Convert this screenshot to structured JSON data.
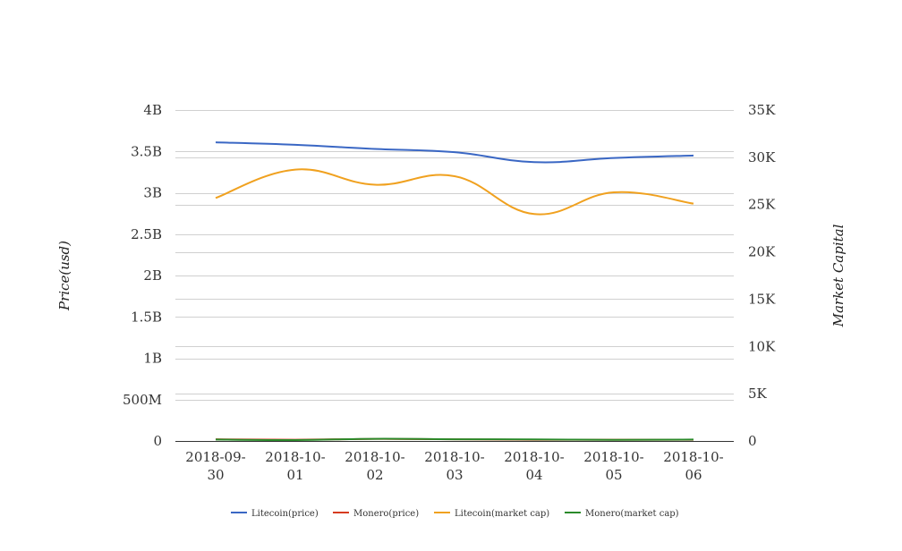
{
  "chart_data": {
    "type": "line",
    "categories": [
      "2018-09-30",
      "2018-10-01",
      "2018-10-02",
      "2018-10-03",
      "2018-10-04",
      "2018-10-05",
      "2018-10-06"
    ],
    "category_labels": [
      [
        "2018-09-",
        "30"
      ],
      [
        "2018-10-",
        "01"
      ],
      [
        "2018-10-",
        "02"
      ],
      [
        "2018-10-",
        "03"
      ],
      [
        "2018-10-",
        "04"
      ],
      [
        "2018-10-",
        "05"
      ],
      [
        "2018-10-",
        "06"
      ]
    ],
    "ylabel": "Price(usd)",
    "y2label": "Market Capital",
    "ylim": [
      0,
      4000000000
    ],
    "y2lim": [
      0,
      35000
    ],
    "y_ticks": [
      0,
      500000000,
      1000000000,
      1500000000,
      2000000000,
      2500000000,
      3000000000,
      3500000000,
      4000000000
    ],
    "y_tick_labels": [
      "0",
      "500M",
      "1B",
      "1.5B",
      "2B",
      "2.5B",
      "3B",
      "3.5B",
      "4B"
    ],
    "y2_ticks": [
      0,
      5000,
      10000,
      15000,
      20000,
      25000,
      30000,
      35000
    ],
    "y2_tick_labels": [
      "0",
      "5K",
      "10K",
      "15K",
      "20K",
      "25K",
      "30K",
      "35K"
    ],
    "grid": true,
    "legend_position": "bottom",
    "series": [
      {
        "name": "Litecoin(price)",
        "axis": "left",
        "color": "#3a67c4",
        "values": [
          3610000000,
          3580000000,
          3530000000,
          3490000000,
          3370000000,
          3420000000,
          3450000000
        ]
      },
      {
        "name": "Monero(price)",
        "axis": "left",
        "color": "#d63b1f",
        "values": [
          20000000,
          15000000,
          25000000,
          20000000,
          15000000,
          15000000,
          15000000
        ]
      },
      {
        "name": "Litecoin(market cap)",
        "axis": "right",
        "color": "#f0a11f",
        "values": [
          25700,
          28700,
          27100,
          28000,
          24000,
          26300,
          25100
        ]
      },
      {
        "name": "Monero(market cap)",
        "axis": "right",
        "color": "#2a8a2a",
        "values": [
          150,
          100,
          230,
          180,
          170,
          120,
          150
        ]
      }
    ]
  }
}
